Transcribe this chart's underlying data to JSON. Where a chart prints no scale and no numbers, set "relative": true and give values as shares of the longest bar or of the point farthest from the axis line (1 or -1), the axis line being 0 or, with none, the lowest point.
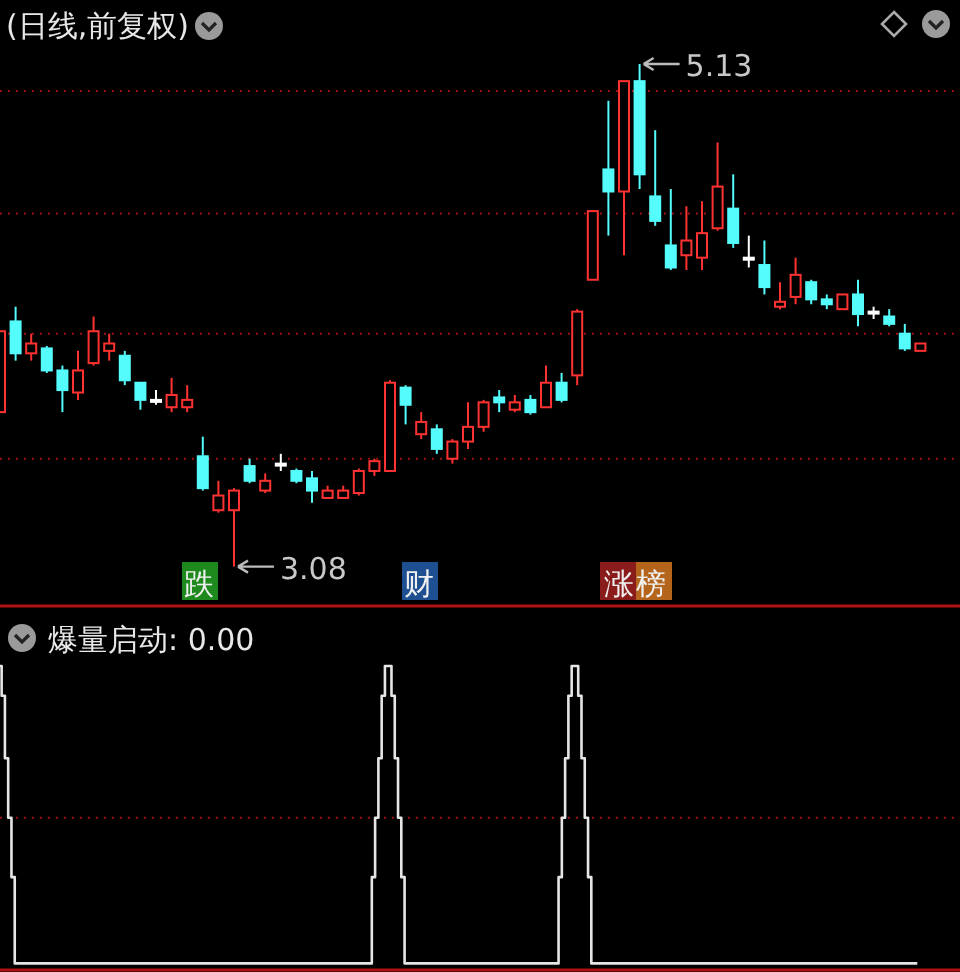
{
  "chart_data": [
    {
      "type": "candlestick",
      "title": "(日线,前复权)",
      "grid": "y",
      "yticks": [
        {
          "value": 5.02,
          "label": null
        },
        {
          "value": 4.52,
          "label": null
        },
        {
          "value": 4.03,
          "label": null
        },
        {
          "value": 3.52,
          "label": null
        }
      ],
      "categories": [
        null,
        null,
        null,
        null,
        null,
        null,
        null,
        null,
        null,
        null,
        null,
        null,
        null,
        null,
        null,
        null,
        null,
        null,
        null,
        null,
        null,
        null,
        null,
        null,
        null,
        null,
        null,
        null,
        null,
        null,
        null,
        null,
        null,
        null,
        null,
        null,
        null,
        null,
        null,
        null,
        null,
        null,
        null,
        null,
        null,
        null,
        null,
        null,
        null,
        null,
        null,
        null,
        null,
        null,
        null,
        null,
        null,
        null,
        null,
        null
      ],
      "ohlc": [
        [
          3.71,
          4.04,
          3.71,
          4.04
        ],
        [
          4.08,
          4.14,
          3.92,
          3.95
        ],
        [
          3.95,
          4.03,
          3.92,
          3.99
        ],
        [
          3.97,
          3.98,
          3.87,
          3.88
        ],
        [
          3.88,
          3.9,
          3.71,
          3.8
        ],
        [
          3.79,
          3.96,
          3.76,
          3.88
        ],
        [
          3.91,
          4.1,
          3.9,
          4.04
        ],
        [
          3.96,
          4.03,
          3.92,
          3.99
        ],
        [
          3.94,
          3.96,
          3.82,
          3.84
        ],
        [
          3.83,
          3.83,
          3.72,
          3.76
        ],
        [
          3.76,
          3.8,
          3.74,
          3.76
        ],
        [
          3.73,
          3.85,
          3.71,
          3.78
        ],
        [
          3.73,
          3.82,
          3.71,
          3.76
        ],
        [
          3.53,
          3.61,
          3.39,
          3.4
        ],
        [
          3.31,
          3.43,
          3.3,
          3.37
        ],
        [
          3.31,
          3.4,
          3.08,
          3.39
        ],
        [
          3.49,
          3.52,
          3.42,
          3.43
        ],
        [
          3.39,
          3.46,
          3.38,
          3.43
        ],
        [
          3.5,
          3.54,
          3.47,
          3.5
        ],
        [
          3.47,
          3.48,
          3.42,
          3.43
        ],
        [
          3.44,
          3.47,
          3.34,
          3.39
        ],
        [
          3.36,
          3.41,
          3.36,
          3.39
        ],
        [
          3.36,
          3.41,
          3.36,
          3.39
        ],
        [
          3.38,
          3.48,
          3.37,
          3.47
        ],
        [
          3.47,
          3.52,
          3.45,
          3.51
        ],
        [
          3.47,
          3.84,
          3.47,
          3.83
        ],
        [
          3.81,
          3.82,
          3.66,
          3.74
        ],
        [
          3.62,
          3.71,
          3.6,
          3.67
        ],
        [
          3.64,
          3.66,
          3.54,
          3.56
        ],
        [
          3.52,
          3.6,
          3.5,
          3.59
        ],
        [
          3.59,
          3.75,
          3.56,
          3.65
        ],
        [
          3.65,
          3.76,
          3.63,
          3.75
        ],
        [
          3.77,
          3.8,
          3.71,
          3.75
        ],
        [
          3.72,
          3.78,
          3.71,
          3.75
        ],
        [
          3.76,
          3.78,
          3.7,
          3.71
        ],
        [
          3.73,
          3.9,
          3.73,
          3.83
        ],
        [
          3.83,
          3.87,
          3.75,
          3.76
        ],
        [
          3.86,
          4.13,
          3.82,
          4.12
        ],
        [
          4.25,
          4.53,
          4.25,
          4.53
        ],
        [
          4.7,
          4.98,
          4.43,
          4.61
        ],
        [
          4.61,
          5.06,
          4.35,
          5.06
        ],
        [
          5.06,
          5.13,
          4.62,
          4.68
        ],
        [
          4.59,
          4.86,
          4.47,
          4.49
        ],
        [
          4.39,
          4.62,
          4.29,
          4.3
        ],
        [
          4.35,
          4.55,
          4.29,
          4.41
        ],
        [
          4.34,
          4.57,
          4.29,
          4.44
        ],
        [
          4.46,
          4.81,
          4.45,
          4.63
        ],
        [
          4.54,
          4.68,
          4.38,
          4.4
        ],
        [
          4.34,
          4.43,
          4.3,
          4.34
        ],
        [
          4.31,
          4.41,
          4.19,
          4.22
        ],
        [
          4.14,
          4.24,
          4.13,
          4.16
        ],
        [
          4.18,
          4.34,
          4.15,
          4.27
        ],
        [
          4.24,
          4.25,
          4.15,
          4.17
        ],
        [
          4.17,
          4.19,
          4.13,
          4.15
        ],
        [
          4.13,
          4.19,
          4.13,
          4.19
        ],
        [
          4.19,
          4.25,
          4.06,
          4.11
        ],
        [
          4.12,
          4.14,
          4.09,
          4.12
        ],
        [
          4.1,
          4.13,
          4.06,
          4.07
        ],
        [
          4.03,
          4.07,
          3.96,
          3.97
        ],
        [
          3.96,
          3.99,
          3.96,
          3.99
        ]
      ],
      "colors": [
        "#ff3232",
        "#54fcfc",
        "#ff3232",
        "#54fcfc",
        "#54fcfc",
        "#ff3232",
        "#ff3232",
        "#ff3232",
        "#54fcfc",
        "#54fcfc",
        "#ffffff",
        "#ff3232",
        "#ff3232",
        "#54fcfc",
        "#ff3232",
        "#ff3232",
        "#54fcfc",
        "#ff3232",
        "#ffffff",
        "#54fcfc",
        "#54fcfc",
        "#ff3232",
        "#ff3232",
        "#ff3232",
        "#ff3232",
        "#ff3232",
        "#54fcfc",
        "#ff3232",
        "#54fcfc",
        "#ff3232",
        "#ff3232",
        "#ff3232",
        "#54fcfc",
        "#ff3232",
        "#54fcfc",
        "#ff3232",
        "#54fcfc",
        "#ff3232",
        "#ff3232",
        "#54fcfc",
        "#ff3232",
        "#54fcfc",
        "#54fcfc",
        "#54fcfc",
        "#ff3232",
        "#ff3232",
        "#ff3232",
        "#54fcfc",
        "#ffffff",
        "#54fcfc",
        "#ff3232",
        "#ff3232",
        "#54fcfc",
        "#54fcfc",
        "#ff3232",
        "#54fcfc",
        "#ffffff",
        "#54fcfc",
        "#54fcfc",
        "#ff3232"
      ],
      "annotations": [
        "5.13",
        "3.08",
        "跌",
        "财",
        "涨榜"
      ]
    },
    {
      "type": "step",
      "title": "爆量启动: 0.00",
      "relative": true,
      "color": "#e6e6e6",
      "categories": [
        null,
        null,
        null,
        null,
        null,
        null,
        null,
        null,
        null,
        null,
        null,
        null,
        null,
        null,
        null,
        null,
        null,
        null,
        null,
        null,
        null,
        null,
        null,
        null,
        null,
        null,
        null,
        null,
        null,
        null,
        null,
        null,
        null,
        null,
        null,
        null,
        null,
        null,
        null,
        null,
        null,
        null,
        null,
        null,
        null,
        null,
        null,
        null,
        null,
        null,
        null,
        null,
        null,
        null,
        null,
        null,
        null,
        null,
        null,
        null,
        null,
        null,
        null,
        null,
        null,
        null,
        null,
        null,
        null,
        null,
        null,
        null,
        null,
        null,
        null,
        null,
        null,
        null,
        null,
        null,
        null,
        null,
        null,
        null,
        null,
        null,
        null,
        null,
        null,
        null,
        null,
        null,
        null,
        null,
        null,
        null,
        null,
        null,
        null,
        null,
        null,
        null,
        null,
        null,
        null,
        null,
        null,
        null,
        null,
        null,
        null,
        null,
        null,
        null,
        null,
        null,
        null,
        null,
        null,
        null,
        null,
        null,
        null,
        null,
        null,
        null,
        null,
        null,
        null,
        null,
        null,
        null,
        null,
        null,
        null,
        null,
        null,
        null,
        null,
        null,
        null,
        null,
        null,
        null,
        null,
        null,
        null,
        null,
        null,
        null,
        null,
        null,
        null,
        null,
        null,
        null,
        null,
        null,
        null,
        null,
        null,
        null,
        null,
        null,
        null,
        null,
        null,
        null,
        null,
        null,
        null,
        null,
        null,
        null,
        null,
        null,
        null,
        null,
        null,
        null,
        null,
        null,
        null,
        null,
        null,
        null,
        null,
        null,
        null,
        null,
        null,
        null,
        null,
        null,
        null,
        null,
        null,
        null,
        null,
        null,
        null,
        null,
        null,
        null,
        null,
        null,
        null,
        null,
        null,
        null,
        null,
        null,
        null,
        null,
        null,
        null,
        null,
        null,
        null,
        null,
        null,
        null,
        null,
        null,
        null,
        null,
        null,
        null,
        null,
        null,
        null,
        null,
        null,
        null,
        null,
        null,
        null,
        null,
        null,
        null,
        null,
        null,
        null,
        null,
        null,
        null,
        null,
        null,
        null,
        null,
        null,
        null,
        null,
        null,
        null,
        null,
        null,
        null,
        null,
        null,
        null,
        null,
        null,
        null,
        null,
        null,
        null,
        null,
        null,
        null,
        null,
        null,
        null,
        null,
        null,
        null,
        null,
        null,
        null,
        null,
        null
      ],
      "values": [
        1,
        0.9,
        0.69,
        0.49,
        0.29,
        0,
        0,
        0,
        0,
        0,
        0,
        0,
        0,
        0,
        0,
        0,
        0,
        0,
        0,
        0,
        0,
        0,
        0,
        0,
        0,
        0,
        0,
        0,
        0,
        0,
        0,
        0,
        0,
        0,
        0,
        0,
        0,
        0,
        0,
        0,
        0,
        0,
        0,
        0,
        0,
        0,
        0,
        0,
        0,
        0,
        0,
        0,
        0,
        0,
        0,
        0,
        0,
        0,
        0,
        0,
        0,
        0,
        0,
        0,
        0,
        0,
        0,
        0,
        0,
        0,
        0,
        0,
        0,
        0,
        0,
        0,
        0,
        0,
        0,
        0,
        0,
        0,
        0,
        0,
        0,
        0,
        0,
        0,
        0,
        0,
        0,
        0,
        0,
        0,
        0,
        0,
        0,
        0,
        0,
        0,
        0,
        0,
        0,
        0,
        0,
        0,
        0,
        0,
        0,
        0,
        0,
        0,
        0,
        0,
        0.29,
        0.49,
        0.69,
        0.9,
        1,
        1,
        0.9,
        0.69,
        0.49,
        0.29,
        0,
        0,
        0,
        0,
        0,
        0,
        0,
        0,
        0,
        0,
        0,
        0,
        0,
        0,
        0,
        0,
        0,
        0,
        0,
        0,
        0,
        0,
        0,
        0,
        0,
        0,
        0,
        0,
        0,
        0,
        0,
        0,
        0,
        0,
        0,
        0,
        0,
        0,
        0,
        0,
        0,
        0,
        0,
        0,
        0,
        0,
        0,
        0.29,
        0.49,
        0.69,
        0.9,
        1,
        1,
        0.9,
        0.69,
        0.49,
        0.29,
        0,
        0,
        0,
        0,
        0,
        0,
        0,
        0,
        0,
        0,
        0,
        0,
        0,
        0,
        0,
        0,
        0,
        0,
        0,
        0,
        0,
        0,
        0,
        0,
        0,
        0,
        0,
        0,
        0,
        0,
        0,
        0,
        0,
        0,
        0,
        0,
        0,
        0,
        0,
        0,
        0,
        0,
        0,
        0,
        0,
        0,
        0,
        0,
        0,
        0,
        0,
        0,
        0,
        0,
        0,
        0,
        0,
        0,
        0,
        0,
        0,
        0,
        0,
        0,
        0,
        0,
        0,
        0,
        0,
        0,
        0,
        0,
        0,
        0,
        0,
        0,
        0,
        0,
        0,
        0,
        0,
        0,
        0,
        0,
        0,
        0,
        0,
        0,
        0,
        0,
        0,
        0,
        0,
        0,
        0,
        0,
        0,
        0,
        0,
        0
      ],
      "ref_lines": [
        {
          "axis": "y",
          "value": 0.49,
          "color": "#a01010",
          "line_style": "dotted"
        }
      ]
    }
  ]
}
